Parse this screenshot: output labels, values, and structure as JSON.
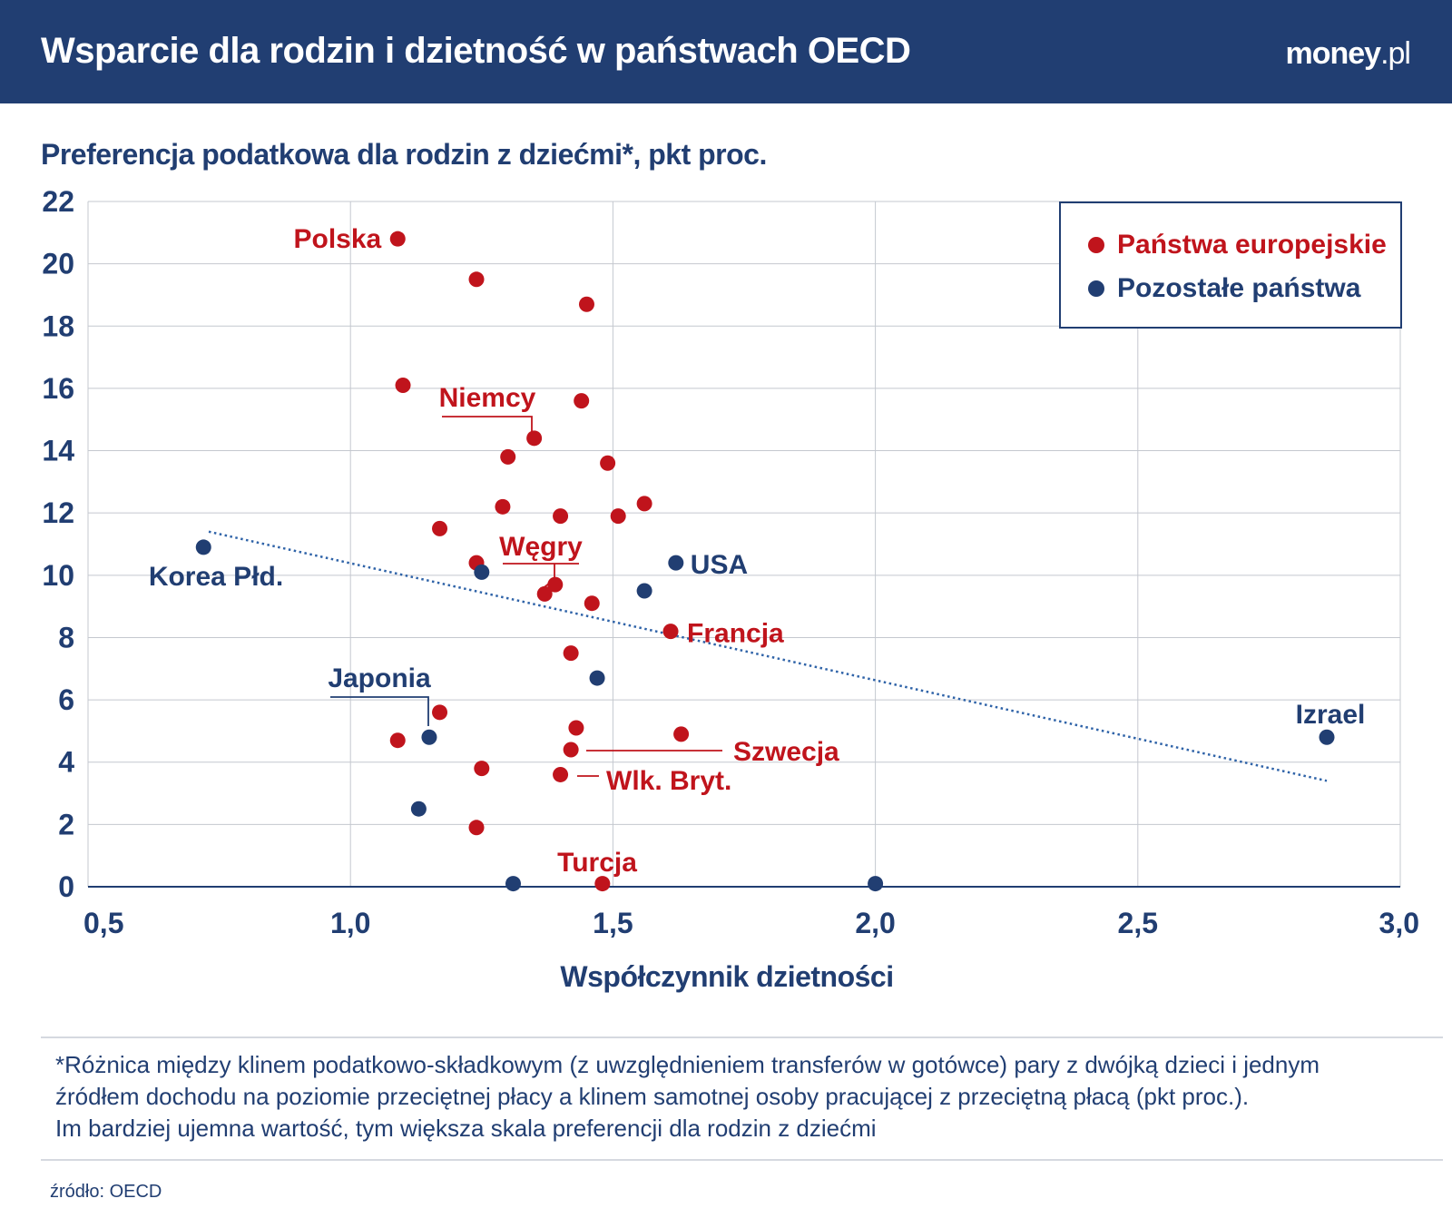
{
  "header": {
    "title": "Wsparcie dla rodzin i dzietność w państwach OECD",
    "logo_main": "money",
    "logo_tld": ".pl"
  },
  "colors": {
    "header_bg": "#213e72",
    "european": "#c0141c",
    "other": "#213e72",
    "grid": "#c4c8cf",
    "trendline": "#2f63a8"
  },
  "legend": {
    "european": "Państwa europejskie",
    "other": "Pozostałe państwa"
  },
  "footnote": {
    "lines": [
      "*Różnica między klinem podatkowo-składkowym (z uwzględnieniem transferów w gotówce) pary z dwójką dzieci i jednym",
      "źródłem dochodu na poziomie przeciętnej płacy a klinem samotnej osoby pracującej  z przeciętną płacą (pkt proc.).",
      "Im bardziej ujemna wartość, tym większa skala preferencji dla rodzin z dziećmi"
    ]
  },
  "source": "źródło: OECD",
  "chart_data": {
    "type": "scatter",
    "title": "",
    "ylabel": "Preferencja podatkowa dla rodzin z dziećmi*, pkt proc.",
    "xlabel": "Współczynnik dzietności",
    "xlim": [
      0.5,
      3.0
    ],
    "ylim": [
      0,
      22
    ],
    "x_ticks": [
      0.5,
      1.0,
      1.5,
      2.0,
      2.5,
      3.0
    ],
    "x_tick_labels": [
      "0,5",
      "1,0",
      "1,5",
      "2,0",
      "2,5",
      "3,0"
    ],
    "y_ticks": [
      0,
      2,
      4,
      6,
      8,
      10,
      12,
      14,
      16,
      18,
      20,
      22
    ],
    "y_tick_labels": [
      "0",
      "2",
      "4",
      "6",
      "8",
      "10",
      "12",
      "14",
      "16",
      "18",
      "20",
      "22"
    ],
    "grid": true,
    "legend_position": "top-right",
    "trendline": {
      "x": [
        0.73,
        2.86
      ],
      "y": [
        11.4,
        3.4
      ],
      "style": "dotted"
    },
    "series": [
      {
        "name": "Państwa europejskie",
        "group": "european",
        "points": [
          {
            "x": 1.09,
            "y": 20.8,
            "label": "Polska"
          },
          {
            "x": 1.24,
            "y": 19.5
          },
          {
            "x": 1.45,
            "y": 18.7
          },
          {
            "x": 1.1,
            "y": 16.1
          },
          {
            "x": 1.44,
            "y": 15.6
          },
          {
            "x": 1.35,
            "y": 14.4,
            "label": "Niemcy"
          },
          {
            "x": 1.3,
            "y": 13.8
          },
          {
            "x": 1.49,
            "y": 13.6
          },
          {
            "x": 1.56,
            "y": 12.3
          },
          {
            "x": 1.29,
            "y": 12.2
          },
          {
            "x": 1.4,
            "y": 11.9
          },
          {
            "x": 1.51,
            "y": 11.9
          },
          {
            "x": 1.17,
            "y": 11.5
          },
          {
            "x": 1.24,
            "y": 10.4
          },
          {
            "x": 1.39,
            "y": 9.7,
            "label": "Węgry"
          },
          {
            "x": 1.37,
            "y": 9.4
          },
          {
            "x": 1.46,
            "y": 9.1
          },
          {
            "x": 1.61,
            "y": 8.2,
            "label": "Francja"
          },
          {
            "x": 1.42,
            "y": 7.5
          },
          {
            "x": 1.17,
            "y": 5.6
          },
          {
            "x": 1.09,
            "y": 4.7
          },
          {
            "x": 1.43,
            "y": 5.1
          },
          {
            "x": 1.63,
            "y": 4.9
          },
          {
            "x": 1.42,
            "y": 4.4,
            "label": "Szwecja"
          },
          {
            "x": 1.25,
            "y": 3.8
          },
          {
            "x": 1.4,
            "y": 3.6,
            "label": "Wlk. Bryt."
          },
          {
            "x": 1.24,
            "y": 1.9
          },
          {
            "x": 1.48,
            "y": 0.1,
            "label": "Turcja"
          }
        ]
      },
      {
        "name": "Pozostałe państwa",
        "group": "other",
        "points": [
          {
            "x": 0.72,
            "y": 10.9,
            "label": "Korea Płd."
          },
          {
            "x": 1.25,
            "y": 10.1
          },
          {
            "x": 1.62,
            "y": 10.4,
            "label": "USA"
          },
          {
            "x": 1.56,
            "y": 9.5
          },
          {
            "x": 1.47,
            "y": 6.7
          },
          {
            "x": 1.15,
            "y": 4.8,
            "label": "Japonia"
          },
          {
            "x": 1.13,
            "y": 2.5
          },
          {
            "x": 1.31,
            "y": 0.1
          },
          {
            "x": 2.0,
            "y": 0.1
          },
          {
            "x": 2.86,
            "y": 4.8,
            "label": "Izrael"
          }
        ]
      }
    ]
  }
}
